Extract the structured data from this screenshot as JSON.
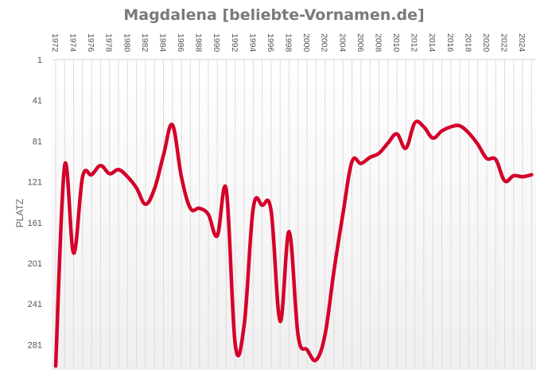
{
  "chart_data": {
    "type": "line",
    "title": "Magdalena [beliebte-Vornamen.de]",
    "xlabel": "",
    "ylabel": "PLATZ",
    "y_inverted": true,
    "ylim": [
      1,
      301
    ],
    "yticks": [
      1,
      41,
      81,
      121,
      161,
      201,
      241,
      281
    ],
    "xtick_labels": [
      "1972",
      "1974",
      "1976",
      "1978",
      "1980",
      "1982",
      "1984",
      "1986",
      "1988",
      "1990",
      "1992",
      "1994",
      "1996",
      "1998",
      "2000",
      "2002",
      "2004",
      "2006",
      "2008",
      "2010",
      "2012",
      "2014",
      "2016",
      "2018",
      "2020",
      "2022",
      "2024"
    ],
    "grid": "vertical per year",
    "series": [
      {
        "name": "Magdalena",
        "color": "#d4002a",
        "x": [
          1972,
          1973,
          1974,
          1975,
          1976,
          1977,
          1978,
          1979,
          1980,
          1981,
          1982,
          1983,
          1984,
          1985,
          1986,
          1987,
          1988,
          1989,
          1990,
          1991,
          1992,
          1993,
          1994,
          1995,
          1996,
          1997,
          1998,
          1999,
          2000,
          2001,
          2002,
          2003,
          2004,
          2005,
          2006,
          2007,
          2008,
          2009,
          2010,
          2011,
          2012,
          2013,
          2014,
          2015,
          2016,
          2017,
          2018,
          2019,
          2020,
          2021,
          2022,
          2023,
          2024,
          2025
        ],
        "values": [
          302,
          105,
          191,
          116,
          114,
          105,
          113,
          109,
          116,
          127,
          143,
          128,
          95,
          65,
          116,
          147,
          147,
          153,
          174,
          129,
          281,
          261,
          147,
          144,
          150,
          258,
          170,
          272,
          286,
          296,
          271,
          208,
          152,
          101,
          103,
          97,
          93,
          83,
          74,
          88,
          63,
          67,
          78,
          71,
          67,
          66,
          73,
          84,
          98,
          99,
          120,
          115,
          116,
          114
        ]
      }
    ]
  }
}
